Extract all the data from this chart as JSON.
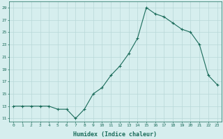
{
  "x": [
    0,
    1,
    2,
    3,
    4,
    5,
    6,
    7,
    8,
    9,
    10,
    11,
    12,
    13,
    14,
    15,
    16,
    17,
    18,
    19,
    20,
    21,
    22,
    23
  ],
  "y": [
    13,
    13,
    13,
    13,
    13,
    12.5,
    12.5,
    11,
    12.5,
    15,
    16,
    18,
    19.5,
    21.5,
    24,
    29,
    28,
    27.5,
    26.5,
    25.5,
    25,
    23,
    18,
    16.5
  ],
  "line_color": "#1a6b5a",
  "marker": "+",
  "marker_size": 3,
  "xlabel": "Humidex (Indice chaleur)",
  "ylim": [
    10.5,
    30
  ],
  "xlim": [
    -0.5,
    23.5
  ],
  "yticks": [
    11,
    13,
    15,
    17,
    19,
    21,
    23,
    25,
    27,
    29
  ],
  "xticks": [
    0,
    1,
    2,
    3,
    4,
    5,
    6,
    7,
    8,
    9,
    10,
    11,
    12,
    13,
    14,
    15,
    16,
    17,
    18,
    19,
    20,
    21,
    22,
    23
  ],
  "xtick_labels": [
    "0",
    "1",
    "2",
    "3",
    "4",
    "5",
    "6",
    "7",
    "8",
    "9",
    "10",
    "11",
    "12",
    "13",
    "14",
    "15",
    "16",
    "17",
    "18",
    "19",
    "20",
    "21",
    "22",
    "23"
  ],
  "bg_color": "#d6eeee",
  "grid_color": "#b8d8d8",
  "font_color": "#1a6b5a"
}
